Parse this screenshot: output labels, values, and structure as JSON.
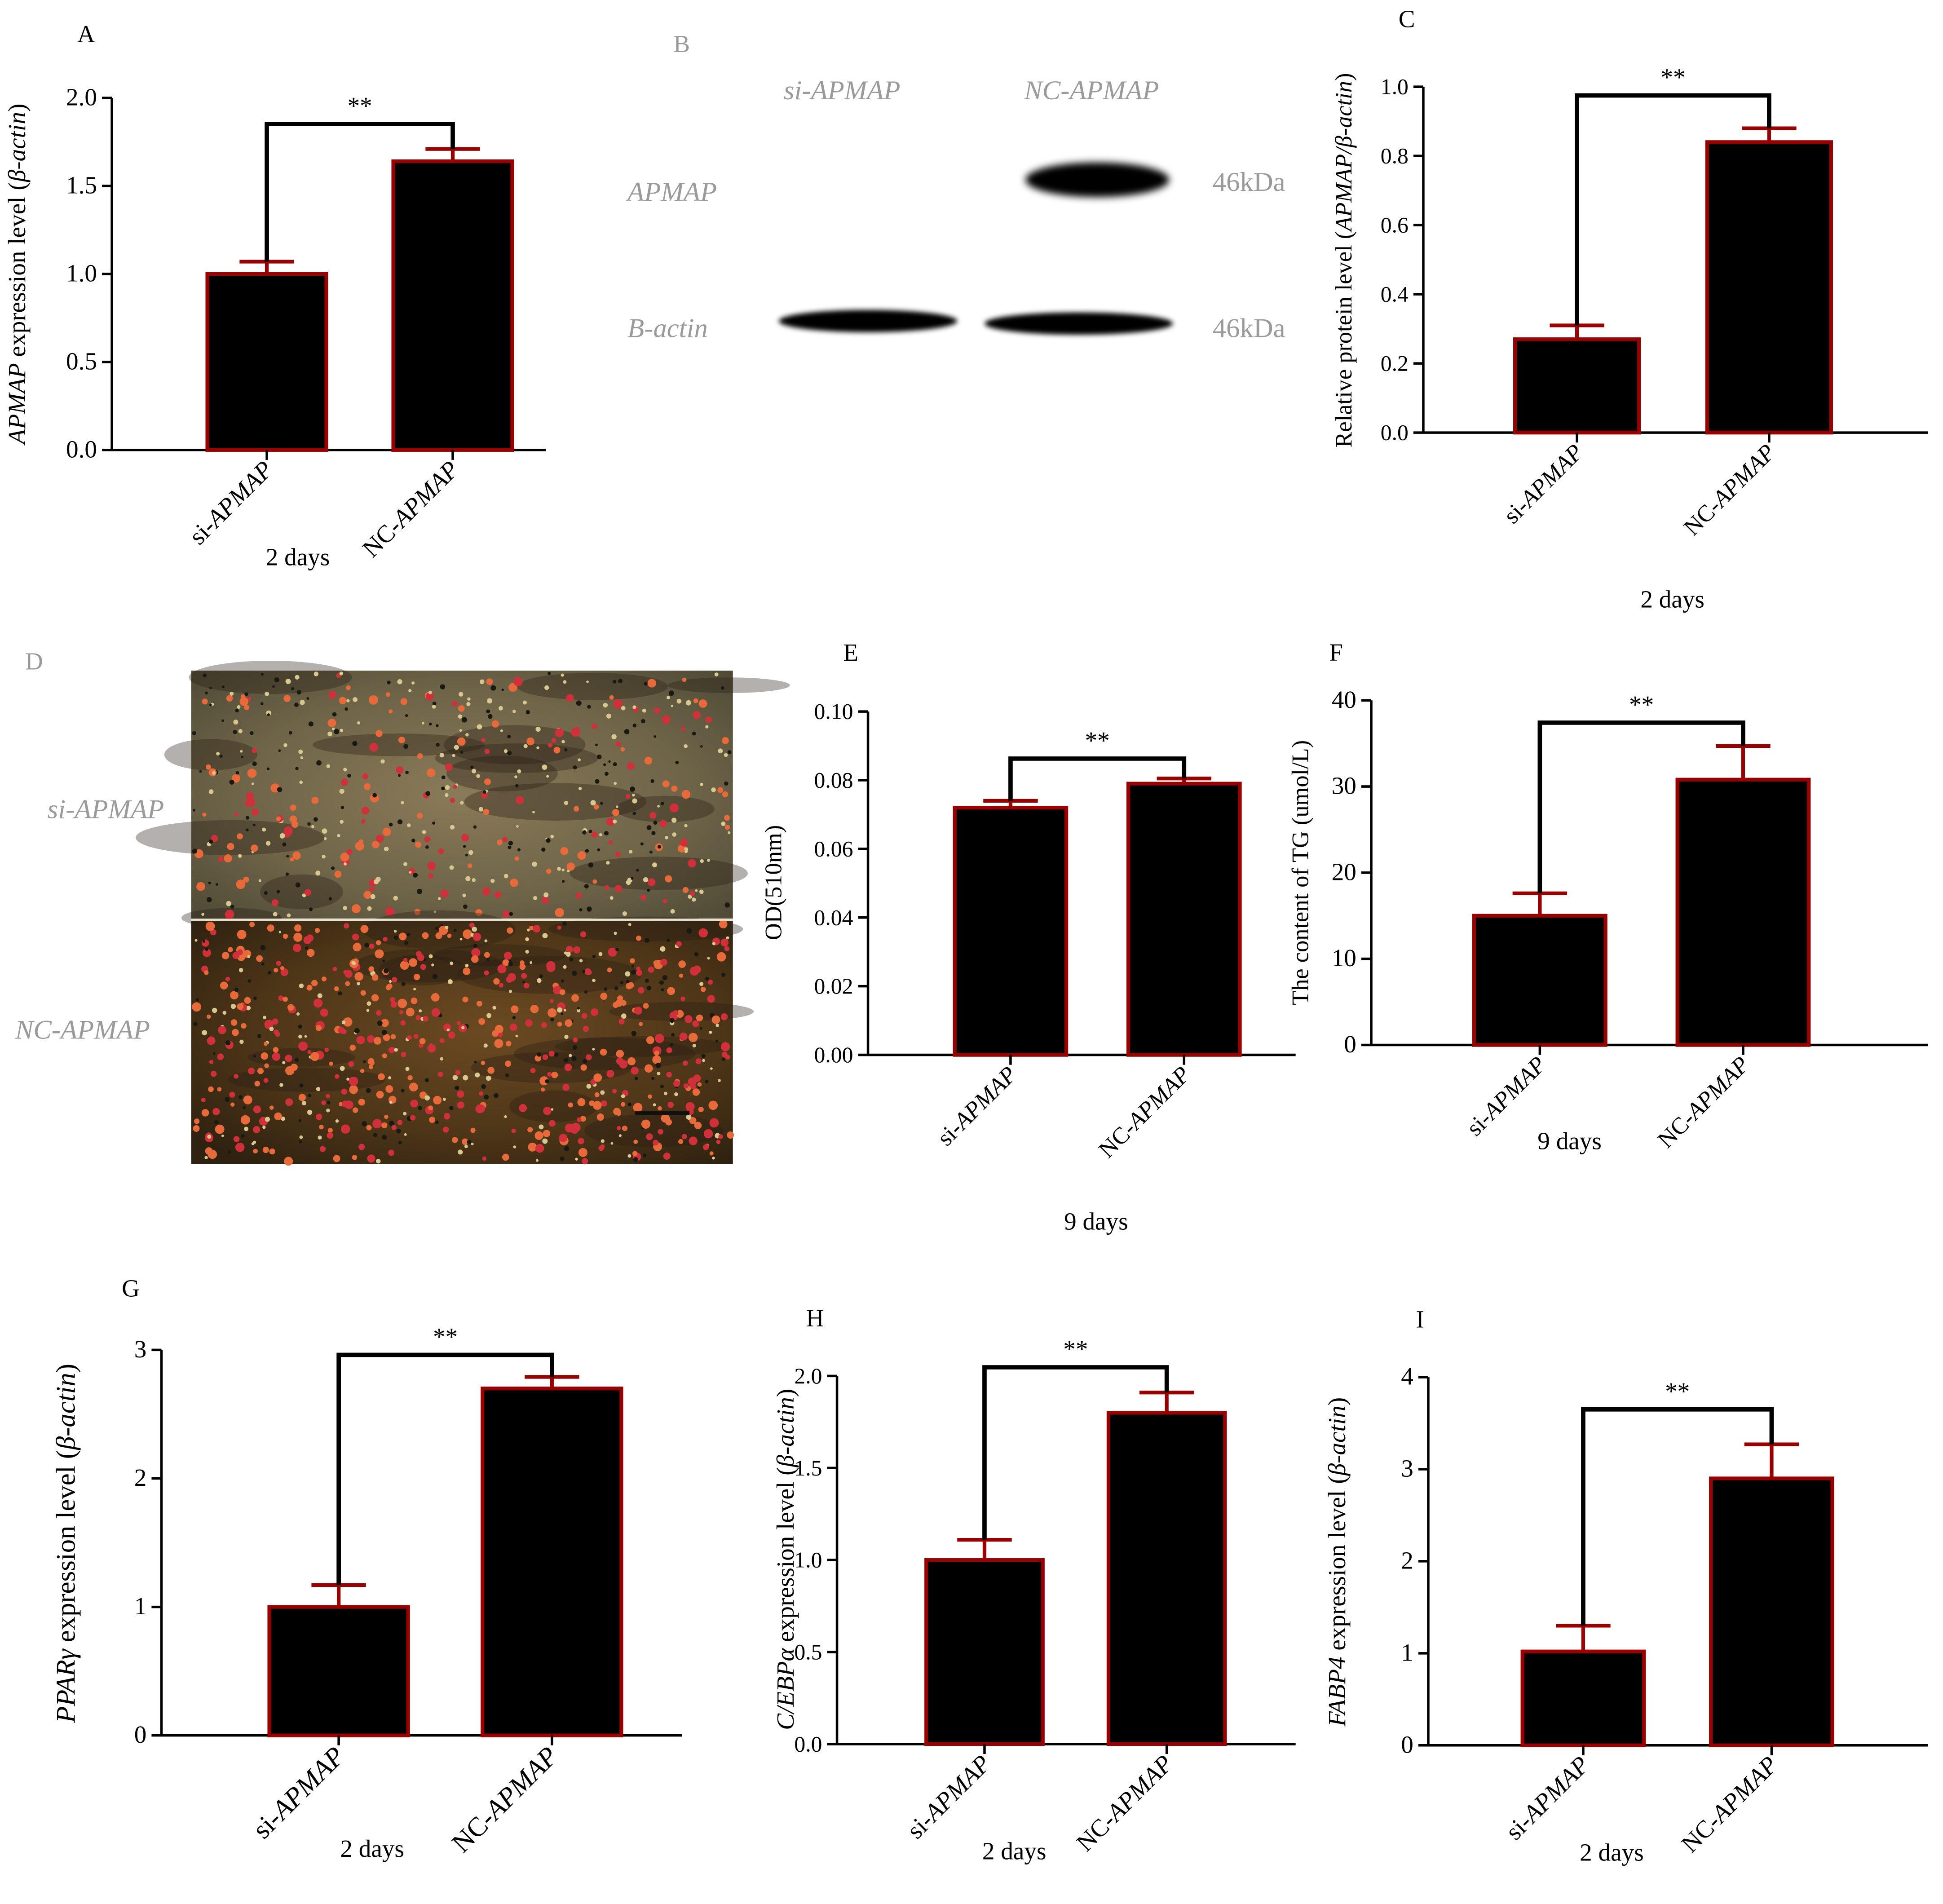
{
  "figure": {
    "panel_b": {
      "letter": "B",
      "lanes": [
        "si-APMAP",
        "NC-APMAP"
      ],
      "rows": [
        {
          "protein": "APMAP",
          "size": "46kDa",
          "band_present": [
            false,
            true
          ]
        },
        {
          "protein": "B-actin",
          "size": "46kDa",
          "band_present": [
            true,
            true
          ]
        }
      ]
    },
    "panel_d": {
      "letter": "D",
      "image_labels": [
        "si-APMAP",
        "NC-APMAP"
      ]
    }
  },
  "colors": {
    "bar_fill": "#000000",
    "bar_edge": "#990000",
    "error_bar": "#990000",
    "bracket": "#000000",
    "text": "#000000",
    "panel_b_text": "#9a9a9a"
  },
  "chart_data": [
    {
      "panel": "A",
      "type": "bar",
      "categories": [
        "si-APMAP",
        "NC-APMAP"
      ],
      "values": [
        1.0,
        1.64
      ],
      "errors": [
        0.07,
        0.07
      ],
      "xlabel": "2 days",
      "ylabel": "APMAP expression level (β-actin)",
      "ylim": [
        0,
        2.0
      ],
      "yticks": [
        "0.0",
        "0.5",
        "1.0",
        "1.5",
        "2.0"
      ],
      "significance": "**"
    },
    {
      "panel": "C",
      "type": "bar",
      "categories": [
        "si-APMAP",
        "NC-APMAP"
      ],
      "values": [
        0.27,
        0.84
      ],
      "errors": [
        0.04,
        0.04
      ],
      "xlabel": "2 days",
      "ylabel": "Relative protein level (APMAP/β-actin)",
      "ylim": [
        0,
        1.0
      ],
      "yticks": [
        "0.0",
        "0.2",
        "0.4",
        "0.6",
        "0.8",
        "1.0"
      ],
      "significance": "**"
    },
    {
      "panel": "E",
      "type": "bar",
      "categories": [
        "si-APMAP",
        "NC-APMAP"
      ],
      "values": [
        0.072,
        0.079
      ],
      "errors": [
        0.002,
        0.0015
      ],
      "xlabel": "9 days",
      "ylabel": "OD(510nm)",
      "ylim": [
        0,
        0.1
      ],
      "yticks": [
        "0.00",
        "0.02",
        "0.04",
        "0.06",
        "0.08",
        "0.10"
      ],
      "significance": "**"
    },
    {
      "panel": "F",
      "type": "bar",
      "categories": [
        "si-APMAP",
        "NC-APMAP"
      ],
      "values": [
        15.0,
        30.8
      ],
      "errors": [
        2.6,
        3.9
      ],
      "xlabel": "9 days",
      "ylabel": "The content of TG (umol/L)",
      "ylim": [
        0,
        40
      ],
      "yticks": [
        "0",
        "10",
        "20",
        "30",
        "40"
      ],
      "significance": "**"
    },
    {
      "panel": "G",
      "type": "bar",
      "categories": [
        "si-APMAP",
        "NC-APMAP"
      ],
      "values": [
        1.0,
        2.7
      ],
      "errors": [
        0.17,
        0.09
      ],
      "xlabel": "2 days",
      "ylabel": "PPARγ expression level (β-actin)",
      "ylim": [
        0,
        3
      ],
      "yticks": [
        "0",
        "1",
        "2",
        "3"
      ],
      "significance": "**"
    },
    {
      "panel": "H",
      "type": "bar",
      "categories": [
        "si-APMAP",
        "NC-APMAP"
      ],
      "values": [
        1.0,
        1.8
      ],
      "errors": [
        0.11,
        0.11
      ],
      "xlabel": "2 days",
      "ylabel": "C/EBPα expression level (β-actin)",
      "ylim": [
        0,
        2.0
      ],
      "yticks": [
        "0.0",
        "0.5",
        "1.0",
        "1.5",
        "2.0"
      ],
      "significance": "**"
    },
    {
      "panel": "I",
      "type": "bar",
      "categories": [
        "si-APMAP",
        "NC-APMAP"
      ],
      "values": [
        1.02,
        2.9
      ],
      "errors": [
        0.28,
        0.37
      ],
      "xlabel": "2 days",
      "ylabel": "FABP4  expression level (β-actin)",
      "ylim": [
        0,
        4
      ],
      "yticks": [
        "0",
        "1",
        "2",
        "3",
        "4"
      ],
      "significance": "**"
    }
  ]
}
